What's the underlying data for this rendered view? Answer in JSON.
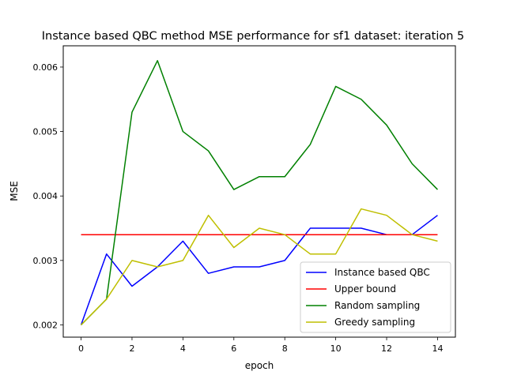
{
  "chart_data": {
    "type": "line",
    "title": "Instance based QBC method MSE performance for sf1 dataset: iteration 5",
    "xlabel": "epoch",
    "ylabel": "MSE",
    "x": [
      0,
      1,
      2,
      3,
      4,
      5,
      6,
      7,
      8,
      9,
      10,
      11,
      12,
      13,
      14
    ],
    "xlim": [
      -0.7,
      14.7
    ],
    "ylim": [
      0.00181,
      0.00633
    ],
    "xticks": [
      0,
      2,
      4,
      6,
      8,
      10,
      12,
      14
    ],
    "xtick_labels": [
      "0",
      "2",
      "4",
      "6",
      "8",
      "10",
      "12",
      "14"
    ],
    "yticks": [
      0.002,
      0.003,
      0.004,
      0.005,
      0.006
    ],
    "ytick_labels": [
      "0.002",
      "0.003",
      "0.004",
      "0.005",
      "0.006"
    ],
    "grid": false,
    "legend_position": "lower-right",
    "series": [
      {
        "name": "Instance based QBC",
        "color": "#0000ff",
        "values": [
          0.002,
          0.0031,
          0.0026,
          0.0029,
          0.0033,
          0.0028,
          0.0029,
          0.0029,
          0.003,
          0.0035,
          0.0035,
          0.0035,
          0.0034,
          0.0034,
          0.0037
        ]
      },
      {
        "name": "Upper bound",
        "color": "#ff0000",
        "values": [
          0.0034,
          0.0034,
          0.0034,
          0.0034,
          0.0034,
          0.0034,
          0.0034,
          0.0034,
          0.0034,
          0.0034,
          0.0034,
          0.0034,
          0.0034,
          0.0034,
          0.0034
        ]
      },
      {
        "name": "Random sampling",
        "color": "#008000",
        "values": [
          0.002,
          0.0024,
          0.0053,
          0.0061,
          0.005,
          0.0047,
          0.0041,
          0.0043,
          0.0043,
          0.0048,
          0.0057,
          0.0055,
          0.0051,
          0.0045,
          0.0041
        ]
      },
      {
        "name": "Greedy sampling",
        "color": "#bfbf00",
        "values": [
          0.002,
          0.0024,
          0.003,
          0.0029,
          0.003,
          0.0037,
          0.0032,
          0.0035,
          0.0034,
          0.0031,
          0.0031,
          0.0038,
          0.0037,
          0.0034,
          0.0033
        ]
      }
    ]
  }
}
